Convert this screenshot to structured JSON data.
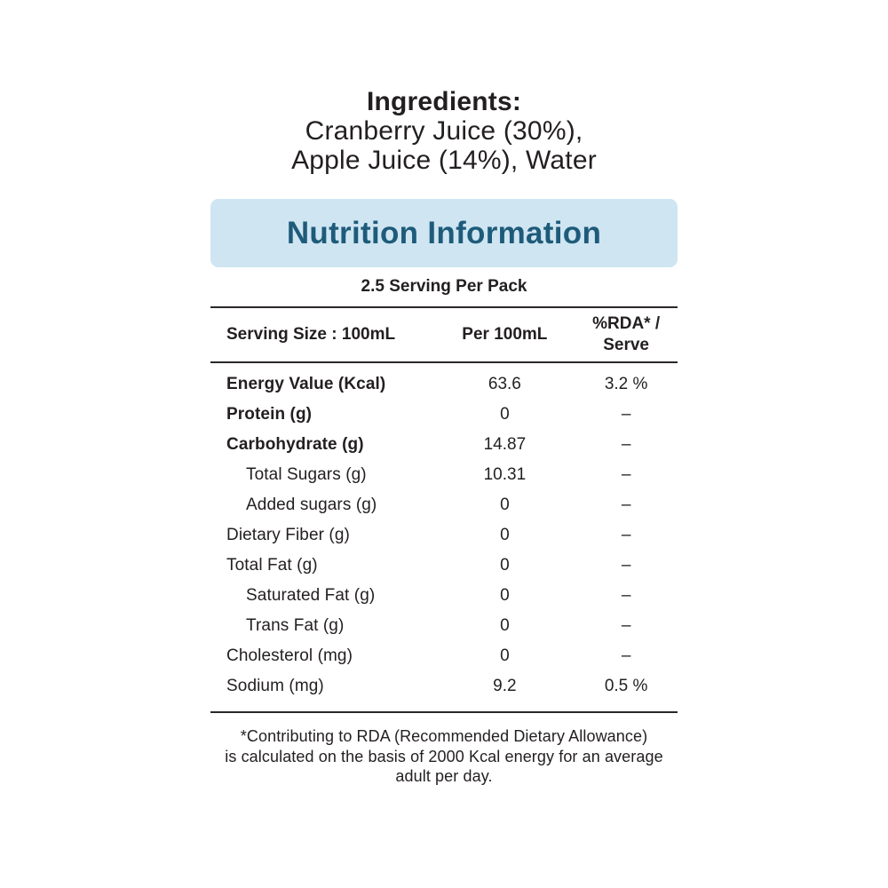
{
  "ingredients": {
    "title": "Ingredients:",
    "line1": "Cranberry Juice (30%),",
    "line2": "Apple Juice (14%), Water"
  },
  "banner": {
    "title": "Nutrition Information",
    "bg_color": "#cfe5f2",
    "text_color": "#1e5b7a"
  },
  "table": {
    "serving_per_pack": "2.5 Serving Per Pack",
    "headers": {
      "serving_size": "Serving Size : 100mL",
      "per_100ml": "Per 100mL",
      "rda": "%RDA* /\nServe"
    },
    "rows": [
      {
        "label": "Energy Value (Kcal)",
        "value": "63.6",
        "rda": "3.2 %"
      },
      {
        "label": "Protein (g)",
        "value": "0",
        "rda": "–"
      },
      {
        "label": "Carbohydrate (g)",
        "value": "14.87",
        "rda": "–"
      },
      {
        "label": "Total Sugars (g)",
        "value": "10.31",
        "rda": "–"
      },
      {
        "label": "Added sugars (g)",
        "value": "0",
        "rda": "–"
      },
      {
        "label": "Dietary Fiber (g)",
        "value": "0",
        "rda": "–"
      },
      {
        "label": "Total Fat (g)",
        "value": "0",
        "rda": "–"
      },
      {
        "label": "Saturated Fat (g)",
        "value": "0",
        "rda": "–"
      },
      {
        "label": "Trans Fat (g)",
        "value": "0",
        "rda": "–"
      },
      {
        "label": "Cholesterol (mg)",
        "value": "0",
        "rda": "–"
      },
      {
        "label": "Sodium (mg)",
        "value": "9.2",
        "rda": "0.5 %"
      }
    ]
  },
  "footnote": "*Contributing to RDA (Recommended Dietary Allowance)\nis calculated on the basis of 2000 Kcal energy for an average\nadult per day."
}
